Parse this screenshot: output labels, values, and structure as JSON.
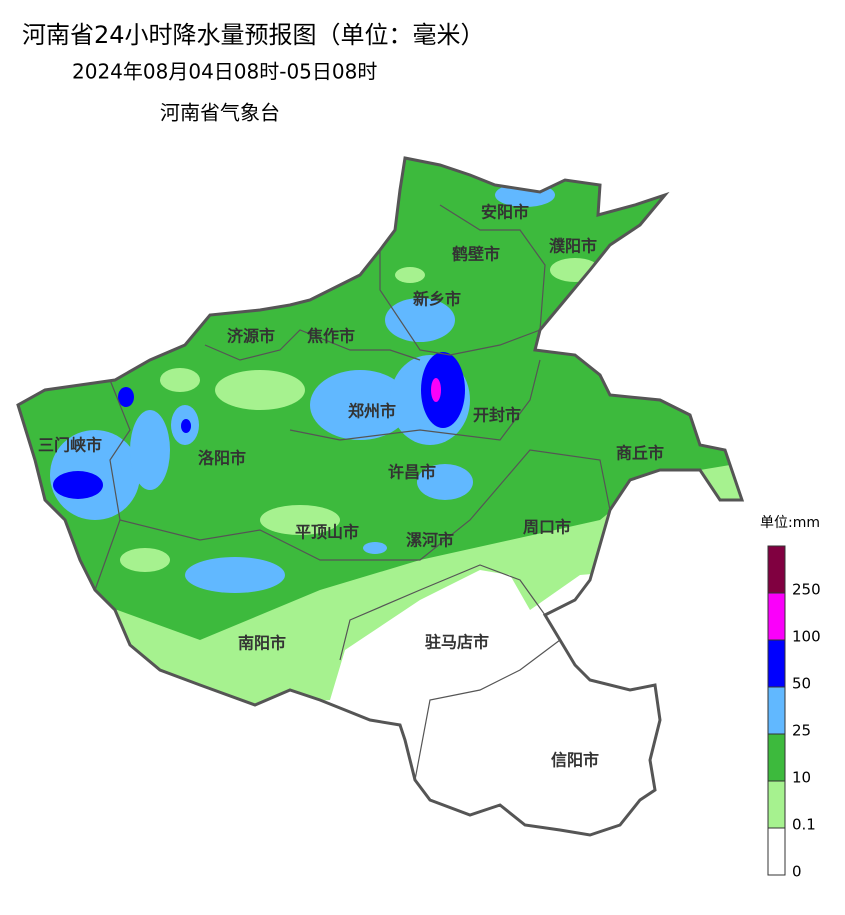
{
  "title": "河南省24小时降水量预报图（单位：毫米）",
  "period": "2024年08月04日08时-05日08时",
  "issuer": "河南省气象台",
  "cities": [
    "安阳市",
    "鹤壁市",
    "濮阳市",
    "新乡市",
    "济源市",
    "焦作市",
    "郑州市",
    "开封市",
    "三门峡市",
    "洛阳市",
    "商丘市",
    "许昌市",
    "平顶山市",
    "漯河市",
    "周口市",
    "南阳市",
    "驻马店市",
    "信阳市"
  ],
  "legend": {
    "title": "单位:mm",
    "ticks": [
      0,
      0.1,
      10,
      25,
      50,
      100,
      250
    ],
    "colors": [
      "#ffffff",
      "#a6f28f",
      "#3dba3d",
      "#61b8ff",
      "#0000fe",
      "#fa00fa",
      "#800040"
    ]
  }
}
